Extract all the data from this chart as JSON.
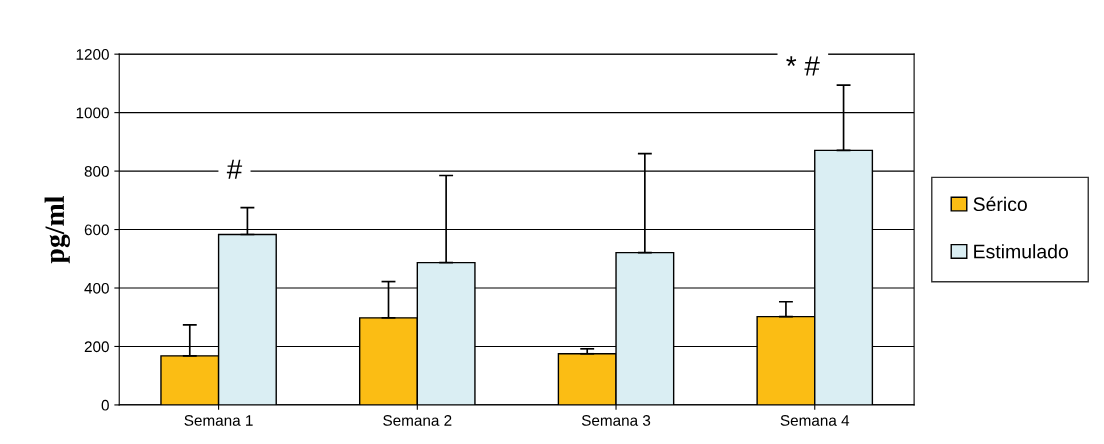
{
  "chart_data": {
    "type": "bar",
    "ylabel": "pg/ml",
    "categories": [
      "Semana 1",
      "Semana 2",
      "Semana 3",
      "Semana 4"
    ],
    "series": [
      {
        "name": "Sérico",
        "color": "#fbbd14",
        "values": [
          168,
          298,
          175,
          302
        ],
        "errors": [
          [
            168,
            274
          ],
          [
            298,
            422
          ],
          [
            175,
            192
          ],
          [
            302,
            353
          ]
        ]
      },
      {
        "name": "Estimulado",
        "color": "#daeef3",
        "values": [
          583,
          487,
          521,
          871
        ],
        "errors": [
          [
            583,
            675
          ],
          [
            487,
            785
          ],
          [
            521,
            860
          ],
          [
            871,
            1094
          ]
        ]
      }
    ],
    "ylim": [
      0,
      1200
    ],
    "yticks": [
      0,
      200,
      400,
      600,
      800,
      1000,
      1200
    ],
    "grid": "y",
    "legend": "right",
    "annotations": [
      "#",
      "* #"
    ]
  }
}
